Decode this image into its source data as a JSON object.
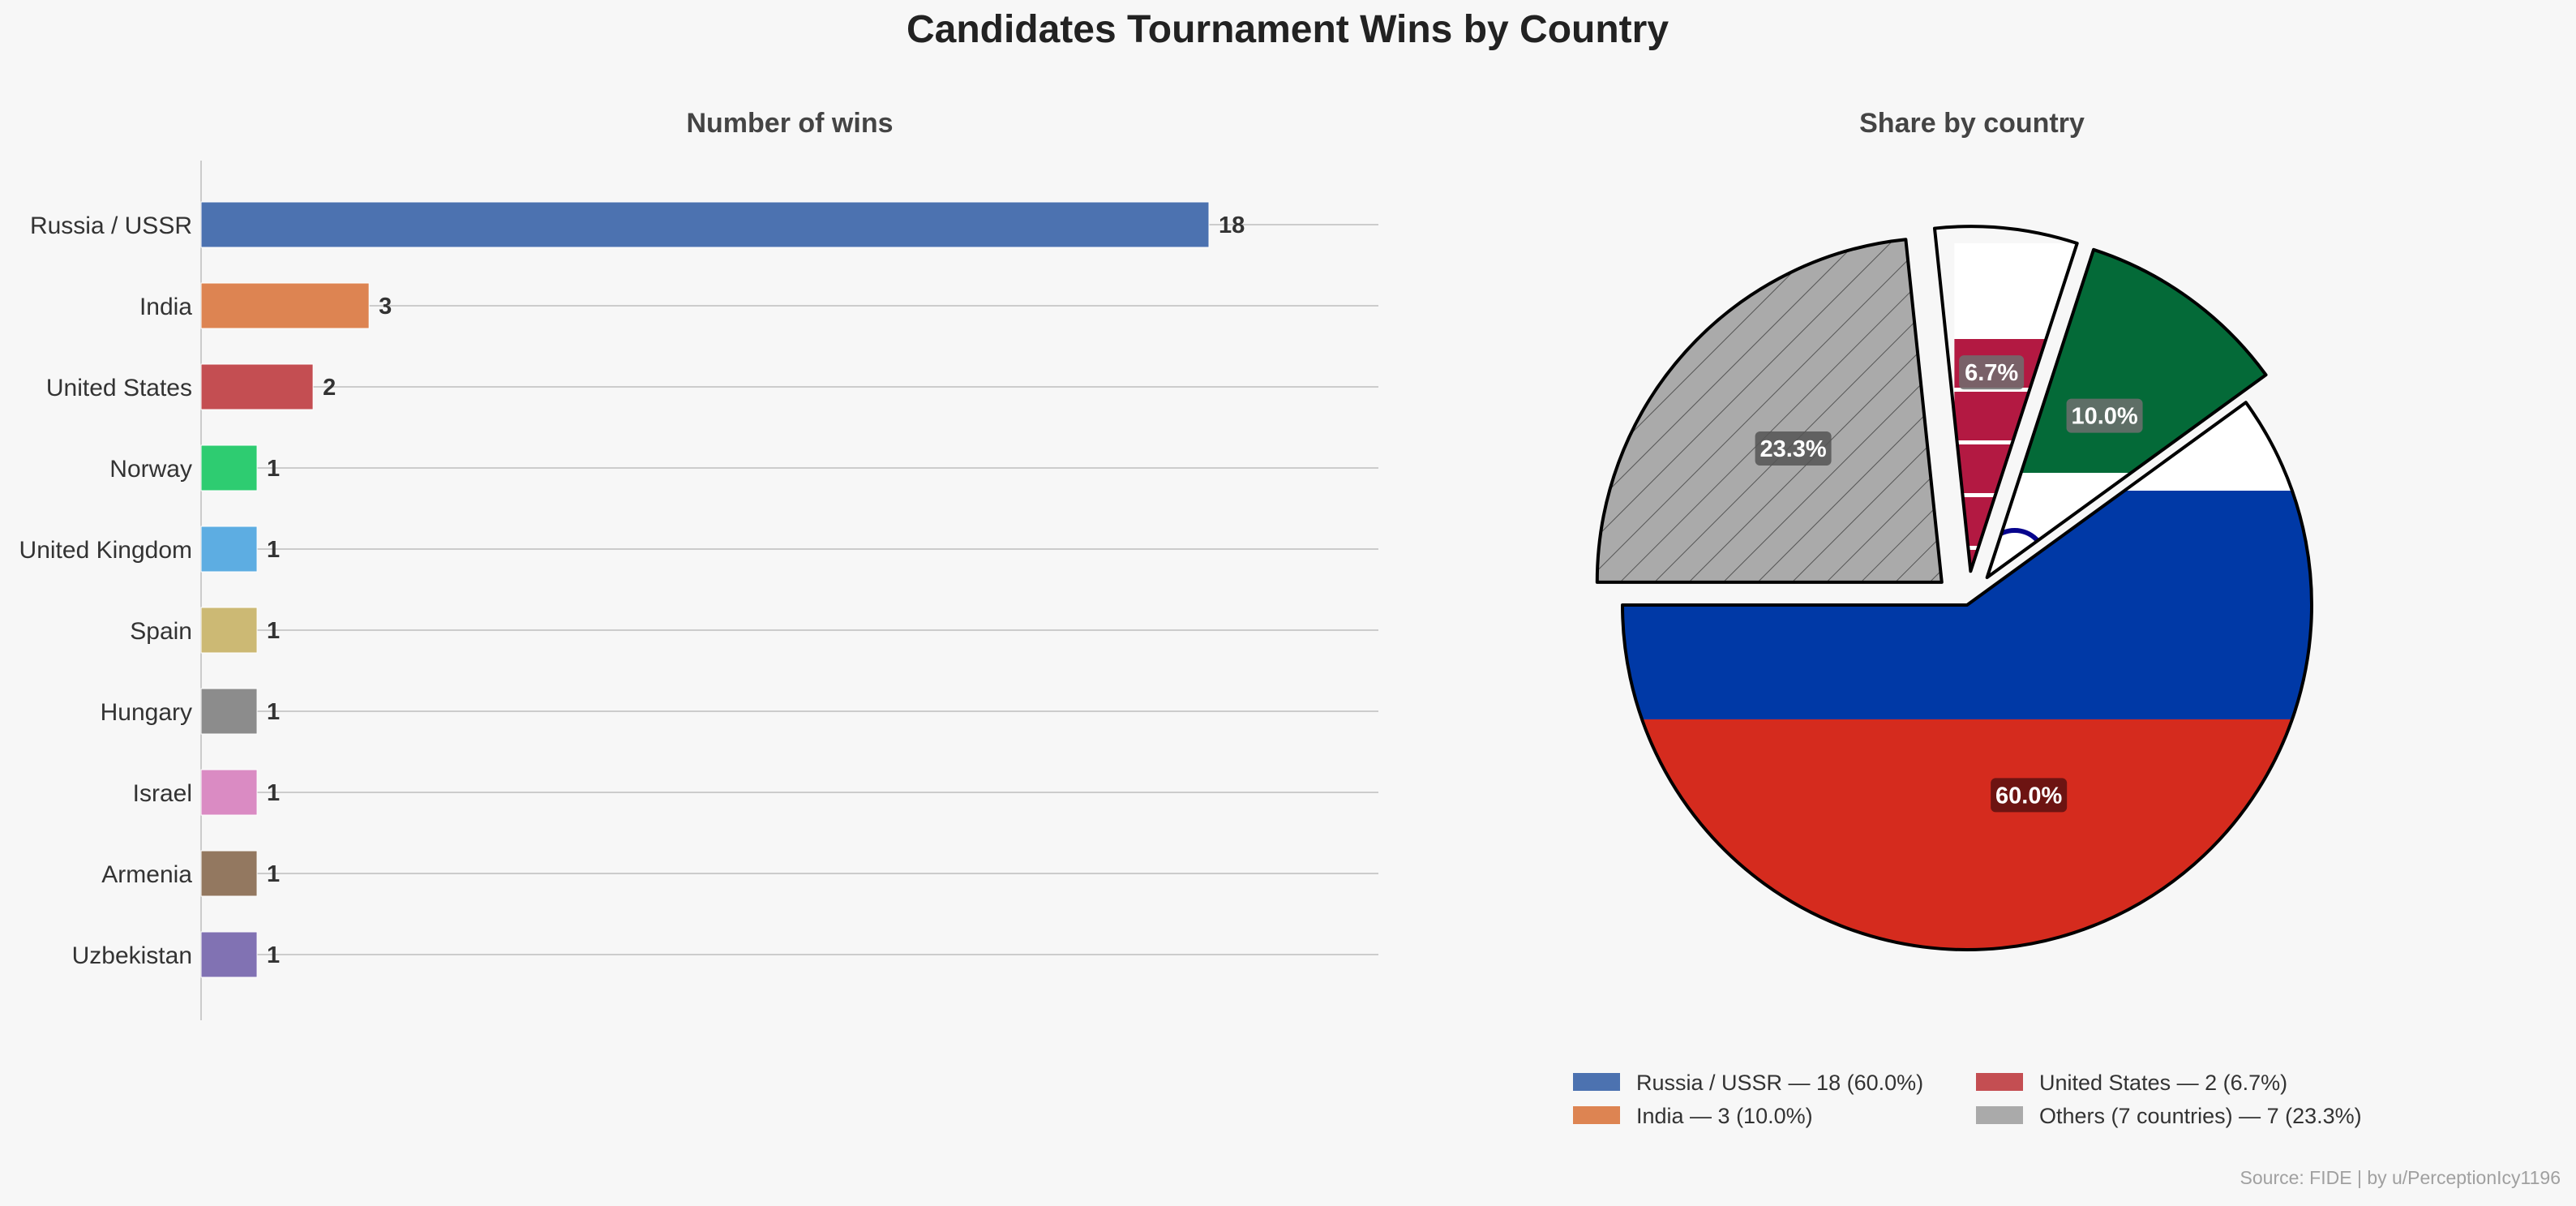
{
  "title": "Candidates Tournament Wins by Country",
  "source": "Source: FIDE | by u/PerceptionIcy1196",
  "chart_data": [
    {
      "type": "bar",
      "orientation": "horizontal",
      "title": "Number of wins",
      "categories": [
        "Russia / USSR",
        "India",
        "United States",
        "Norway",
        "United Kingdom",
        "Spain",
        "Hungary",
        "Israel",
        "Armenia",
        "Uzbekistan"
      ],
      "values": [
        18,
        3,
        2,
        1,
        1,
        1,
        1,
        1,
        1,
        1
      ],
      "colors": [
        "#4c72b0",
        "#dd8452",
        "#c44e52",
        "#2ecc71",
        "#5dade2",
        "#ccb974",
        "#8c8c8c",
        "#da8bc3",
        "#937860",
        "#8172b3"
      ],
      "xlim": [
        0,
        21
      ],
      "grid": "horizontal lines at each category",
      "data_labels": true
    },
    {
      "type": "pie",
      "title": "Share by country",
      "slices": [
        {
          "label": "Russia / USSR",
          "value": 18,
          "percent_label": "60.0%",
          "legend": "Russia / USSR — 18 (60.0%)",
          "color": "#4c72b0",
          "fill": "flag-russia",
          "label_bg": "#5a1010"
        },
        {
          "label": "India",
          "value": 3,
          "percent_label": "10.0%",
          "legend": "India — 3 (10.0%)",
          "color": "#dd8452",
          "fill": "flag-india",
          "label_bg": "#6e6e6e"
        },
        {
          "label": "United States",
          "value": 2,
          "percent_label": "6.7%",
          "legend": "United States — 2 (6.7%)",
          "color": "#c44e52",
          "fill": "flag-usa",
          "label_bg": "#6e6e6e"
        },
        {
          "label": "Others (7 countries)",
          "value": 7,
          "percent_label": "23.3%",
          "legend": "Others (7 countries) — 7 (23.3%)",
          "color": "#aaaaaa",
          "fill": "hatched-gray",
          "label_bg": "#555555"
        }
      ],
      "start_angle_deg": 180,
      "direction": "counterclockwise",
      "exploded": [
        "India",
        "United States",
        "Others (7 countries)"
      ],
      "legend_position": "bottom"
    }
  ]
}
